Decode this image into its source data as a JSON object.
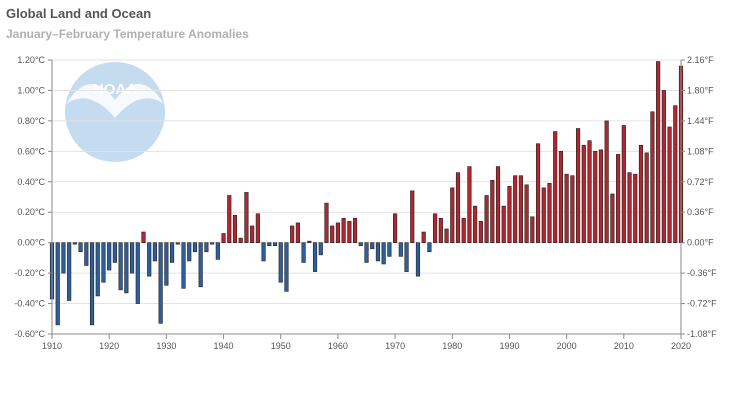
{
  "chart_data": {
    "type": "bar",
    "title": "Global Land and Ocean",
    "subtitle": "January–February Temperature Anomalies",
    "x": [
      1910,
      1911,
      1912,
      1913,
      1914,
      1915,
      1916,
      1917,
      1918,
      1919,
      1920,
      1921,
      1922,
      1923,
      1924,
      1925,
      1926,
      1927,
      1928,
      1929,
      1930,
      1931,
      1932,
      1933,
      1934,
      1935,
      1936,
      1937,
      1938,
      1939,
      1940,
      1941,
      1942,
      1943,
      1944,
      1945,
      1946,
      1947,
      1948,
      1949,
      1950,
      1951,
      1952,
      1953,
      1954,
      1955,
      1956,
      1957,
      1958,
      1959,
      1960,
      1961,
      1962,
      1963,
      1964,
      1965,
      1966,
      1967,
      1968,
      1969,
      1970,
      1971,
      1972,
      1973,
      1974,
      1975,
      1976,
      1977,
      1978,
      1979,
      1980,
      1981,
      1982,
      1983,
      1984,
      1985,
      1986,
      1987,
      1988,
      1989,
      1990,
      1991,
      1992,
      1993,
      1994,
      1995,
      1996,
      1997,
      1998,
      1999,
      2000,
      2001,
      2002,
      2003,
      2004,
      2005,
      2006,
      2007,
      2008,
      2009,
      2010,
      2011,
      2012,
      2013,
      2014,
      2015,
      2016,
      2017,
      2018,
      2019,
      2020
    ],
    "values": [
      -0.37,
      -0.54,
      -0.2,
      -0.38,
      -0.01,
      -0.06,
      -0.15,
      -0.54,
      -0.35,
      -0.26,
      -0.18,
      -0.13,
      -0.31,
      -0.33,
      -0.2,
      -0.4,
      0.07,
      -0.22,
      -0.12,
      -0.53,
      -0.28,
      -0.13,
      -0.01,
      -0.3,
      -0.12,
      -0.06,
      -0.29,
      -0.06,
      -0.01,
      -0.11,
      0.06,
      0.31,
      0.18,
      0.03,
      0.33,
      0.11,
      0.19,
      -0.12,
      -0.02,
      -0.02,
      -0.26,
      -0.32,
      0.11,
      0.13,
      -0.13,
      0.01,
      -0.19,
      -0.08,
      0.26,
      0.11,
      0.13,
      0.16,
      0.14,
      0.16,
      -0.02,
      -0.13,
      -0.04,
      -0.12,
      -0.14,
      -0.09,
      0.19,
      -0.09,
      -0.19,
      0.34,
      -0.22,
      0.07,
      -0.06,
      0.19,
      0.16,
      0.09,
      0.36,
      0.46,
      0.16,
      0.5,
      0.24,
      0.14,
      0.31,
      0.41,
      0.5,
      0.24,
      0.37,
      0.44,
      0.44,
      0.38,
      0.17,
      0.65,
      0.36,
      0.39,
      0.73,
      0.6,
      0.45,
      0.44,
      0.75,
      0.64,
      0.67,
      0.6,
      0.61,
      0.8,
      0.32,
      0.58,
      0.77,
      0.46,
      0.45,
      0.64,
      0.59,
      0.86,
      1.19,
      1.0,
      0.76,
      0.9,
      1.16
    ],
    "left_axis": {
      "unit": "°C",
      "ylim": [
        -0.6,
        1.2
      ],
      "step": 0.2,
      "tick_labels": [
        "-0.60°C",
        "-0.40°C",
        "-0.20°C",
        "0.00°C",
        "0.20°C",
        "0.40°C",
        "0.60°C",
        "0.80°C",
        "1.00°C",
        "1.20°C"
      ]
    },
    "right_axis": {
      "unit": "°F",
      "tick_labels": [
        "-1.08°F",
        "-0.72°F",
        "-0.36°F",
        "0.00°F",
        "0.36°F",
        "0.72°F",
        "1.08°F",
        "1.44°F",
        "1.80°F",
        "2.16°F"
      ]
    },
    "x_tick_labels": [
      "1910",
      "1920",
      "1930",
      "1940",
      "1950",
      "1960",
      "1970",
      "1980",
      "1990",
      "2000",
      "2010",
      "2020"
    ],
    "grid": true,
    "legend": "none",
    "colors": {
      "positive": "#b0272f",
      "negative": "#2e5f9c",
      "grid": "#e3e3e3",
      "axis": "#8a8a8a",
      "logo": "#c5dbef"
    },
    "logo_text": "NOAA"
  }
}
